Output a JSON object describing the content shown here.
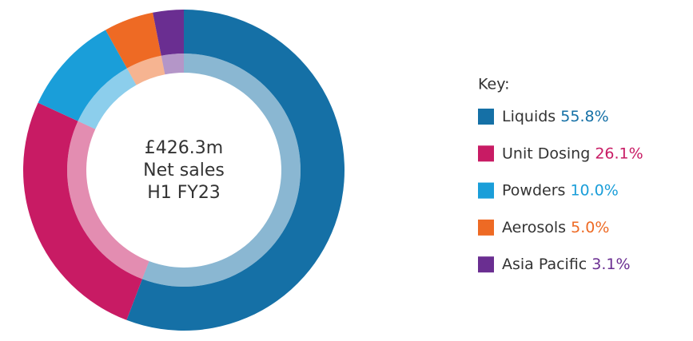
{
  "chart_data": {
    "type": "pie",
    "center_text": [
      "£426.3m",
      "Net sales",
      "H1 FY23"
    ],
    "legend_title": "Key:",
    "categories": [
      "Liquids",
      "Unit Dosing",
      "Powders",
      "Aerosols",
      "Asia Pacific"
    ],
    "values": [
      55.8,
      26.1,
      10.0,
      5.0,
      3.1
    ],
    "value_labels": [
      "55.8%",
      "26.1%",
      "10.0%",
      "5.0%",
      "3.1%"
    ],
    "colors": [
      "#1570a6",
      "#c81b64",
      "#1a9ed9",
      "#ee6a24",
      "#6a2e91"
    ]
  }
}
